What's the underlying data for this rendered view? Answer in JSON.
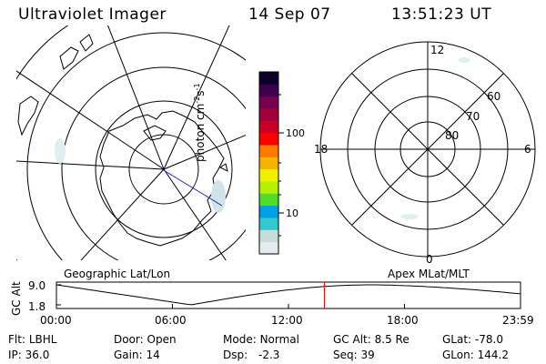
{
  "header": {
    "title": "Ultraviolet Imager",
    "date": "14 Sep 07",
    "time": "13:51:23 UT"
  },
  "colorbar": {
    "unit_prefix": "photon cm",
    "unit_exp1": "-2",
    "unit_mid": "s",
    "unit_exp2": "-1",
    "tick_100": "100",
    "tick_10": "10",
    "colors": [
      "#e6ecec",
      "#c8dcdc",
      "#32c8d2",
      "#00a0e6",
      "#50dc28",
      "#b4f000",
      "#f0f000",
      "#f5b400",
      "#ff7800",
      "#ff0000",
      "#c80028",
      "#a0003c",
      "#780050",
      "#3c0050",
      "#0a0028"
    ]
  },
  "left_map": {
    "label": "Geographic Lat/Lon"
  },
  "right_map": {
    "label": "Apex MLat/MLT",
    "mlt_12": "12",
    "mlt_18": "18",
    "mlt_6": "6",
    "mlt_0": "0",
    "lat_60": "60",
    "lat_70": "70",
    "lat_80": "80"
  },
  "orbit_plot": {
    "ylabel": "GC Alt",
    "y_max": "9.0",
    "y_min": "1.8",
    "x_ticks": [
      "00:00",
      "06:00",
      "12:00",
      "18:00",
      "23:59"
    ],
    "current_time_marker_fraction": 0.5774
  },
  "status": {
    "flt_label": "Flt:",
    "flt_value": "LBHL",
    "ip_label": "IP:",
    "ip_value": "36.0",
    "door_label": "Door:",
    "door_value": "Open",
    "gain_label": "Gain:",
    "gain_value": "14",
    "mode_label": "Mode:",
    "mode_value": "Normal",
    "dsp_label": "Dsp:",
    "dsp_value": "-2.3",
    "gcalt_label": "GC Alt:",
    "gcalt_value": "8.5 Re",
    "seq_label": "Seq:",
    "seq_value": "39",
    "glat_label": "GLat:",
    "glat_value": "-78.0",
    "glon_label": "GLon:",
    "glon_value": "144.2"
  }
}
